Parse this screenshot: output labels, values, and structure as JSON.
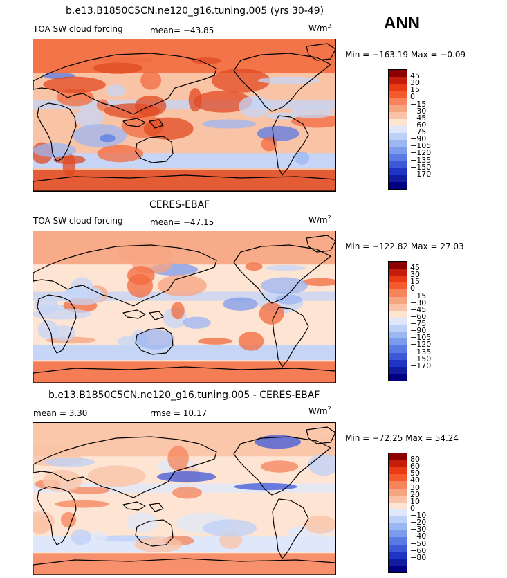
{
  "season": "ANN",
  "unit_base": "W/m",
  "unit_exp": "2",
  "panels": [
    {
      "title": "b.e13.B1850C5CN.ne120_g16.tuning.005 (yrs 30-49)",
      "field_label": "TOA SW cloud forcing",
      "stat_text": "mean=  −43.85",
      "minmax": "Min = −163.19  Max =   −0.09",
      "colorbar": {
        "labels": [
          "45",
          "30",
          "15",
          "0",
          "−15",
          "−30",
          "−45",
          "−60",
          "−75",
          "−90",
          "−105",
          "−120",
          "−135",
          "−150",
          "−170"
        ],
        "colors": [
          "#8b0000",
          "#c41e0a",
          "#e83b15",
          "#f55a2c",
          "#f6835a",
          "#f7a481",
          "#f9c3a6",
          "#fde4d3",
          "#dfe8fa",
          "#bdd0f7",
          "#9cb6f2",
          "#7c9bec",
          "#5b7be4",
          "#3d58d9",
          "#2034c4",
          "#0f1ca0",
          "#000080"
        ]
      },
      "palette": {
        "base": "#f9c3a6",
        "warm": "#f26b3f",
        "hot": "#e04a22",
        "cool": "#c6d5f5",
        "cold": "#9cb6f2",
        "deep": "#5b7be4"
      }
    },
    {
      "title": "CERES-EBAF",
      "field_label": "TOA SW cloud forcing",
      "stat_text": "mean=  −47.15",
      "minmax": "Min = −122.82  Max =   27.03",
      "colorbar": {
        "labels": [
          "45",
          "30",
          "15",
          "0",
          "−15",
          "−30",
          "−45",
          "−60",
          "−75",
          "−90",
          "−105",
          "−120",
          "−135",
          "−150",
          "−170"
        ],
        "colors": [
          "#8b0000",
          "#c41e0a",
          "#e83b15",
          "#f55a2c",
          "#f6835a",
          "#f7a481",
          "#f9c3a6",
          "#fde4d3",
          "#dfe8fa",
          "#bdd0f7",
          "#9cb6f2",
          "#7c9bec",
          "#5b7be4",
          "#3d58d9",
          "#2034c4",
          "#0f1ca0",
          "#000080"
        ]
      },
      "palette": {
        "base": "#fde4d3",
        "warm": "#f7a481",
        "hot": "#f26b3f",
        "cool": "#c6d5f5",
        "cold": "#9cb6f2",
        "deep": "#7c9bec"
      }
    },
    {
      "title": "b.e13.B1850C5CN.ne120_g16.tuning.005 - CERES-EBAF",
      "mean_text": "mean =     3.30",
      "rmse_text": "rmse =   10.17",
      "minmax": "Min = −72.25  Max =   54.24",
      "colorbar": {
        "labels": [
          "80",
          "60",
          "50",
          "40",
          "30",
          "20",
          "10",
          "0",
          "−10",
          "−20",
          "−30",
          "−40",
          "−50",
          "−60",
          "−80"
        ],
        "colors": [
          "#8b0000",
          "#c41e0a",
          "#e83b15",
          "#f55a2c",
          "#f6835a",
          "#f7a481",
          "#f9c3a6",
          "#fde4d3",
          "#dfe8fa",
          "#bdd0f7",
          "#9cb6f2",
          "#7c9bec",
          "#5b7be4",
          "#3d58d9",
          "#2034c4",
          "#0f1ca0",
          "#000080"
        ]
      },
      "palette": {
        "base": "#fde4d3",
        "warm": "#f9c3a6",
        "hot": "#f6835a",
        "cool": "#dfe8fa",
        "cold": "#bdd0f7",
        "deep": "#3d58d9"
      }
    }
  ]
}
